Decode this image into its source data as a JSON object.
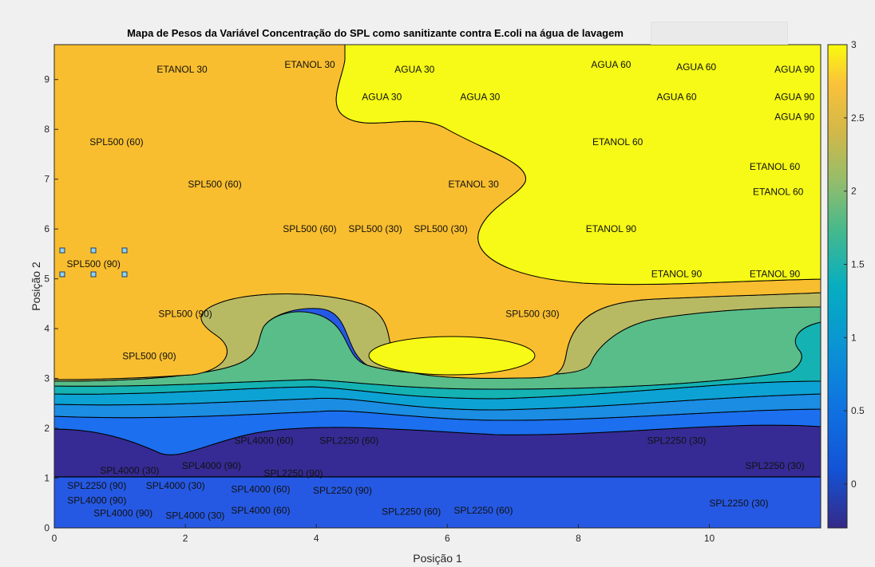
{
  "chart_data": {
    "type": "contour",
    "title": "Mapa de Pesos da Variável Concentração do SPL como sanitizante contra E.coli na água de lavagem",
    "xlabel": "Posição 1",
    "ylabel": "Posição 2",
    "xlim": [
      0,
      11.7
    ],
    "ylim": [
      0,
      9.7
    ],
    "x_ticks": [
      0,
      2,
      4,
      6,
      8,
      10
    ],
    "y_ticks": [
      0,
      1,
      2,
      3,
      4,
      5,
      6,
      7,
      8,
      9
    ],
    "colorbar": {
      "ticks": [
        0,
        0.5,
        1,
        1.5,
        2,
        2.5,
        3
      ],
      "range": [
        -0.3,
        3.0
      ],
      "colormap": "parula",
      "placement": "right"
    },
    "levels": [
      {
        "value": 2.8,
        "color": "#f6fa16"
      },
      {
        "value": 2.45,
        "color": "#f9be2f"
      },
      {
        "value": 1.95,
        "color": "#b8ba63"
      },
      {
        "value": 1.55,
        "color": "#59bd89"
      },
      {
        "value": 1.15,
        "color": "#14b2b3"
      },
      {
        "value": 0.9,
        "color": "#0da2d4"
      },
      {
        "value": 0.65,
        "color": "#1b8de3"
      },
      {
        "value": 0.4,
        "color": "#1c6fee"
      },
      {
        "value": 0.15,
        "color": "#2659e3"
      },
      {
        "value": -0.25,
        "color": "#362b94"
      }
    ],
    "labels": [
      {
        "text": "ETANOL 30",
        "x": 1.95,
        "y": 9.2
      },
      {
        "text": "ETANOL 30",
        "x": 3.9,
        "y": 9.3
      },
      {
        "text": "AGUA 30",
        "x": 5.5,
        "y": 9.2
      },
      {
        "text": "AGUA 60",
        "x": 8.5,
        "y": 9.3
      },
      {
        "text": "AGUA 60",
        "x": 9.8,
        "y": 9.25
      },
      {
        "text": "AGUA 90",
        "x": 11.3,
        "y": 9.2
      },
      {
        "text": "AGUA 30",
        "x": 5.0,
        "y": 8.65
      },
      {
        "text": "AGUA 30",
        "x": 6.5,
        "y": 8.65
      },
      {
        "text": "AGUA 60",
        "x": 9.5,
        "y": 8.65
      },
      {
        "text": "AGUA 90",
        "x": 11.3,
        "y": 8.65
      },
      {
        "text": "AGUA 90",
        "x": 11.3,
        "y": 8.25
      },
      {
        "text": "SPL500 (60)",
        "x": 0.95,
        "y": 7.75
      },
      {
        "text": "ETANOL 60",
        "x": 8.6,
        "y": 7.75
      },
      {
        "text": "ETANOL 60",
        "x": 11.0,
        "y": 7.25
      },
      {
        "text": "SPL500 (60)",
        "x": 2.45,
        "y": 6.9
      },
      {
        "text": "ETANOL 30",
        "x": 6.4,
        "y": 6.9
      },
      {
        "text": "ETANOL 60",
        "x": 11.05,
        "y": 6.75
      },
      {
        "text": "SPL500 (60)",
        "x": 3.9,
        "y": 6.0
      },
      {
        "text": "SPL500 (30)",
        "x": 4.9,
        "y": 6.0
      },
      {
        "text": "SPL500 (30)",
        "x": 5.9,
        "y": 6.0
      },
      {
        "text": "ETANOL 90",
        "x": 8.5,
        "y": 6.0
      },
      {
        "text": "SPL500 (90)",
        "x": 0.6,
        "y": 5.3
      },
      {
        "text": "ETANOL 90",
        "x": 9.5,
        "y": 5.1
      },
      {
        "text": "ETANOL 90",
        "x": 11.0,
        "y": 5.1
      },
      {
        "text": "SPL500 (90)",
        "x": 2.0,
        "y": 4.3
      },
      {
        "text": "SPL500 (30)",
        "x": 7.3,
        "y": 4.3
      },
      {
        "text": "SPL500 (90)",
        "x": 1.45,
        "y": 3.45
      },
      {
        "text": "SPL4000 (60)",
        "x": 3.2,
        "y": 1.75
      },
      {
        "text": "SPL2250 (60)",
        "x": 4.5,
        "y": 1.75
      },
      {
        "text": "SPL2250 (30)",
        "x": 9.5,
        "y": 1.75
      },
      {
        "text": "SPL4000 (30)",
        "x": 1.15,
        "y": 1.15
      },
      {
        "text": "SPL4000 (90)",
        "x": 2.4,
        "y": 1.25
      },
      {
        "text": "SPL2250 (90)",
        "x": 3.65,
        "y": 1.1
      },
      {
        "text": "SPL2250 (30)",
        "x": 11.0,
        "y": 1.25
      },
      {
        "text": "SPL2250 (90)",
        "x": 0.65,
        "y": 0.85
      },
      {
        "text": "SPL4000 (30)",
        "x": 1.85,
        "y": 0.85
      },
      {
        "text": "SPL4000 (60)",
        "x": 3.15,
        "y": 0.78
      },
      {
        "text": "SPL2250 (90)",
        "x": 4.4,
        "y": 0.75
      },
      {
        "text": "SPL4000 (90)",
        "x": 0.65,
        "y": 0.55
      },
      {
        "text": "SPL4000 (90)",
        "x": 1.05,
        "y": 0.3
      },
      {
        "text": "SPL4000 (30)",
        "x": 2.15,
        "y": 0.25
      },
      {
        "text": "SPL4000 (60)",
        "x": 3.15,
        "y": 0.35
      },
      {
        "text": "SPL2250 (60)",
        "x": 5.45,
        "y": 0.33
      },
      {
        "text": "SPL2250 (60)",
        "x": 6.55,
        "y": 0.35
      },
      {
        "text": "SPL2250 (30)",
        "x": 10.45,
        "y": 0.5
      }
    ]
  }
}
